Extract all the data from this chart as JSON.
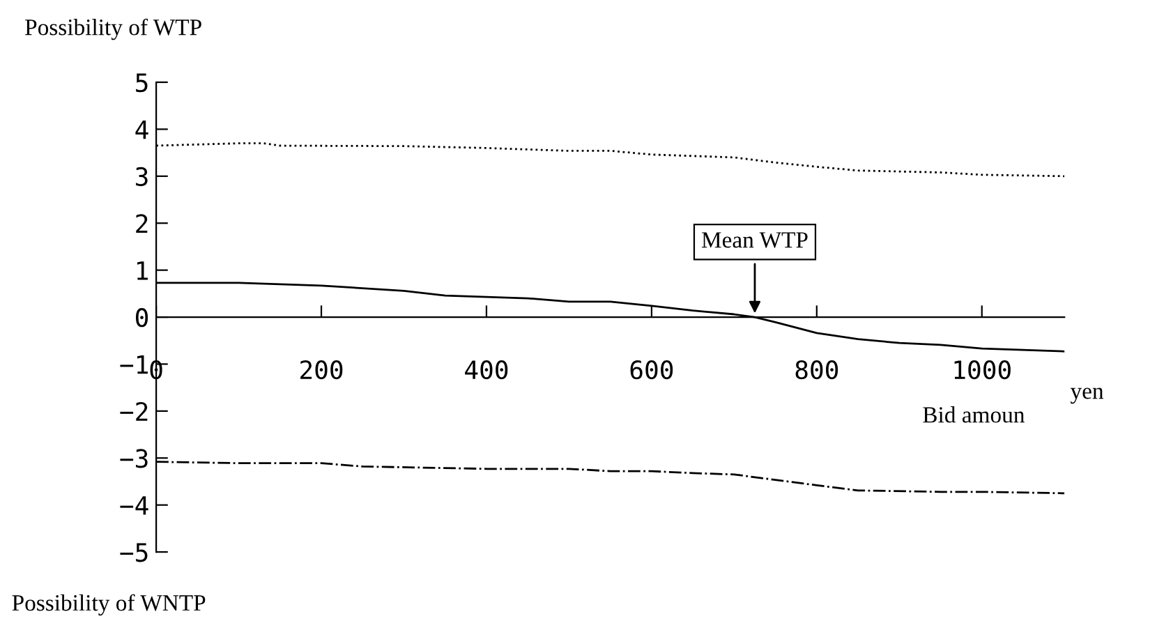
{
  "chart_data": {
    "type": "line",
    "ylabel": "Possibility of WTP",
    "xlabel": "Bid amoun",
    "annotations": [
      "yen",
      "Possibility of WNTP",
      {
        "text": "Mean WTP",
        "x": 725,
        "y": 0
      }
    ],
    "xlim": [
      0,
      1100
    ],
    "xticks": [
      0,
      200,
      400,
      600,
      800,
      1000
    ],
    "ylim": [
      -5,
      5
    ],
    "yticks": [
      -5,
      -4,
      -3,
      -2,
      -1,
      0,
      1,
      2,
      3,
      4,
      5
    ],
    "grid": false,
    "legend": false,
    "marker": "none",
    "series": [
      {
        "color": "#000000",
        "line_style": "dotted",
        "x": [
          0,
          100,
          130,
          150,
          300,
          400,
          500,
          550,
          600,
          700,
          750,
          800,
          850,
          950,
          1000,
          1100
        ],
        "values": [
          3.65,
          3.7,
          3.7,
          3.65,
          3.64,
          3.6,
          3.54,
          3.54,
          3.46,
          3.4,
          3.29,
          3.2,
          3.12,
          3.08,
          3.03,
          3.0
        ]
      },
      {
        "color": "#000000",
        "line_style": "solid",
        "x": [
          0,
          100,
          200,
          300,
          350,
          400,
          450,
          500,
          550,
          600,
          650,
          700,
          725,
          750,
          800,
          850,
          900,
          950,
          1000,
          1100
        ],
        "values": [
          0.73,
          0.73,
          0.67,
          0.56,
          0.46,
          0.43,
          0.4,
          0.33,
          0.33,
          0.24,
          0.14,
          0.06,
          0,
          -0.11,
          -0.34,
          -0.47,
          -0.55,
          -0.59,
          -0.67,
          -0.73
        ]
      },
      {
        "color": "#000000",
        "line_style": "dashdot",
        "x": [
          0,
          100,
          200,
          250,
          400,
          500,
          550,
          600,
          650,
          700,
          800,
          850,
          950,
          1000,
          1100
        ],
        "values": [
          -3.08,
          -3.11,
          -3.11,
          -3.18,
          -3.23,
          -3.23,
          -3.28,
          -3.28,
          -3.32,
          -3.35,
          -3.58,
          -3.69,
          -3.72,
          -3.72,
          -3.75
        ]
      }
    ]
  }
}
